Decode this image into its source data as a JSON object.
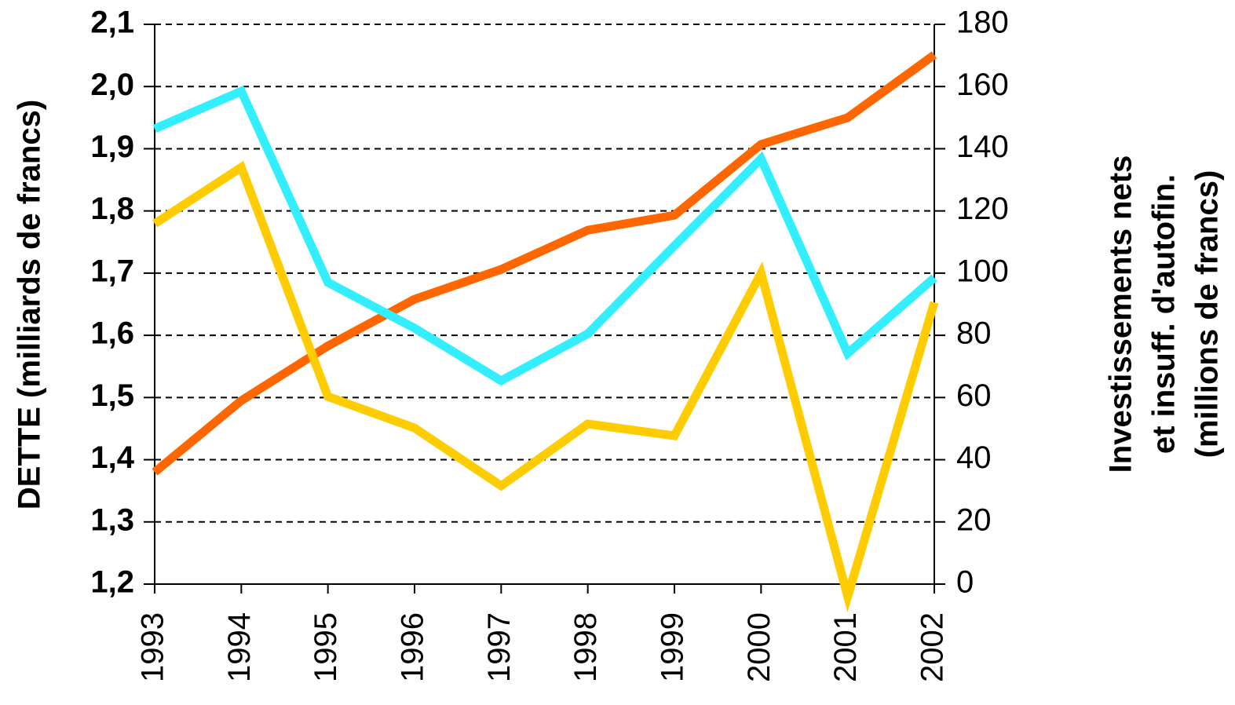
{
  "chart_data": {
    "type": "line",
    "ylabel": "DETTE (milliards de francs)",
    "y2label": [
      "Investissements nets",
      "et insuff. d'autofin.",
      "(millions de francs)"
    ],
    "categories": [
      "1993",
      "1994",
      "1995",
      "1996",
      "1997",
      "1998",
      "1999",
      "2000",
      "2001",
      "2002"
    ],
    "series": [
      {
        "color": "#ff6600",
        "axis": "y",
        "values": [
          1.38,
          1.495,
          1.583,
          1.658,
          1.706,
          1.769,
          1.793,
          1.907,
          1.95,
          2.051
        ]
      },
      {
        "color": "#33eeff",
        "axis": "y2",
        "values": [
          146.4,
          158.5,
          97,
          82.3,
          65.4,
          80.5,
          108.8,
          136.8,
          74.2,
          98.5
        ]
      },
      {
        "color": "#ffcc00",
        "axis": "y2",
        "values": [
          115.9,
          134,
          60.3,
          50.2,
          31.6,
          51.5,
          47.7,
          100,
          -4,
          90.6
        ]
      }
    ],
    "ylim": [
      1.2,
      2.1
    ],
    "yticks": [
      {
        "value": 1.2,
        "label": "1,2"
      },
      {
        "value": 1.3,
        "label": "1,3"
      },
      {
        "value": 1.4,
        "label": "1,4"
      },
      {
        "value": 1.5,
        "label": "1,5"
      },
      {
        "value": 1.6,
        "label": "1,6"
      },
      {
        "value": 1.7,
        "label": "1,7"
      },
      {
        "value": 1.8,
        "label": "1,8"
      },
      {
        "value": 1.9,
        "label": "1,9"
      },
      {
        "value": 2.0,
        "label": "2,0"
      },
      {
        "value": 2.1,
        "label": "2,1"
      }
    ],
    "y2lim": [
      0,
      180
    ],
    "y2ticks": [
      0,
      20,
      40,
      60,
      80,
      100,
      120,
      140,
      160,
      180
    ],
    "grid": true
  }
}
